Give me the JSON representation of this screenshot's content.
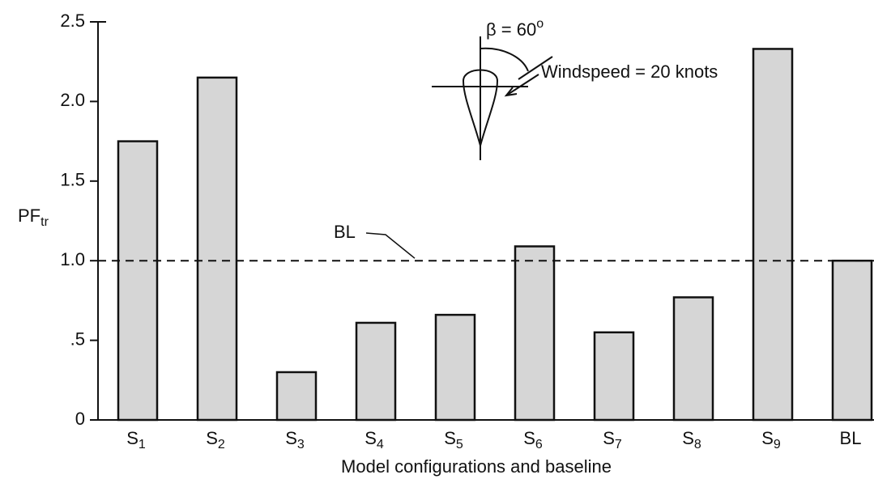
{
  "chart_data": {
    "type": "bar",
    "categories": [
      "S1",
      "S2",
      "S3",
      "S4",
      "S5",
      "S6",
      "S7",
      "S8",
      "S9",
      "BL"
    ],
    "values": [
      1.75,
      2.15,
      0.3,
      0.61,
      0.66,
      1.09,
      0.55,
      0.77,
      2.33,
      1.0
    ],
    "color": "#d6d6d6",
    "ylim": [
      0,
      2.5
    ],
    "yticks": [
      0,
      {
        "value": 0.5,
        "label": ".5"
      },
      {
        "value": 1.0,
        "label": "1.0"
      },
      {
        "value": 1.5,
        "label": "1.5"
      },
      {
        "value": 2.0,
        "label": "2.0"
      },
      2.5
    ],
    "ylabel": "PFtr",
    "xlabel": "Model configurations and baseline",
    "reference_line": {
      "value": 1.0,
      "label": "BL"
    },
    "annotations": [
      "β = 60o",
      "Windspeed = 20 knots"
    ]
  }
}
